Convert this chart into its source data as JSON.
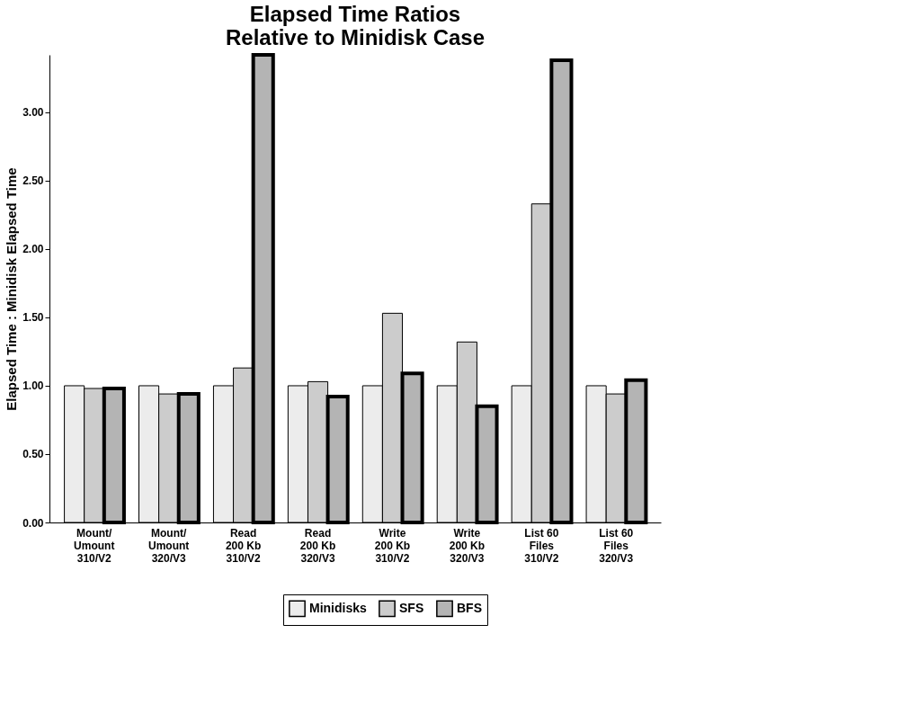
{
  "chart_data": {
    "type": "bar",
    "title": "Elapsed Time Ratios\nRelative to Minidisk Case",
    "ylabel": "Elapsed Time : Minidisk Elapsed Time",
    "categories": [
      "Mount/\nUmount\n310/V2",
      "Mount/\nUmount\n320/V3",
      "Read\n200 Kb\n310/V2",
      "Read\n200 Kb\n320/V3",
      "Write\n200 Kb\n310/V2",
      "Write\n200 Kb\n320/V3",
      "List 60\nFiles\n310/V2",
      "List 60\nFiles\n320/V3"
    ],
    "series": [
      {
        "name": "Minidisks",
        "color": "#ececec",
        "values": [
          1.0,
          1.0,
          1.0,
          1.0,
          1.0,
          1.0,
          1.0,
          1.0
        ]
      },
      {
        "name": "SFS",
        "color": "#cccccc",
        "values": [
          0.98,
          0.94,
          1.13,
          1.03,
          1.53,
          1.32,
          2.33,
          0.94
        ]
      },
      {
        "name": "BFS",
        "color": "#b4b4b4",
        "values": [
          0.98,
          0.94,
          3.42,
          0.92,
          1.09,
          0.85,
          3.38,
          1.04
        ]
      }
    ],
    "ylim": [
      0,
      3.42
    ],
    "yticks": [
      {
        "value": 0,
        "label": "0.00"
      },
      {
        "value": 0.5,
        "label": "0.50"
      },
      {
        "value": 1,
        "label": "1.00"
      },
      {
        "value": 1.5,
        "label": "1.50"
      },
      {
        "value": 2,
        "label": "2.00"
      },
      {
        "value": 2.5,
        "label": "2.50"
      },
      {
        "value": 3,
        "label": "3.00"
      }
    ],
    "grid": false,
    "legend": "bottom"
  }
}
